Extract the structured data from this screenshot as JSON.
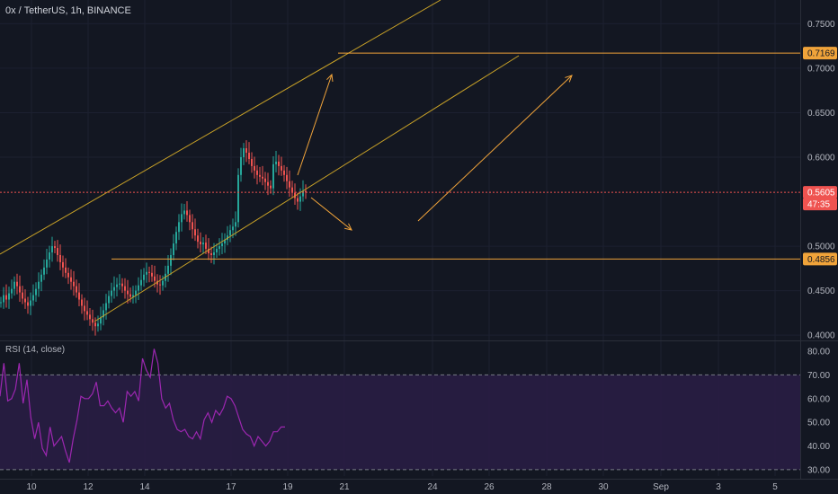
{
  "colors": {
    "background": "#131722",
    "grid": "#1c2030",
    "up": "#26a69a",
    "down": "#ef5350",
    "drawing": "#f0a33a",
    "channel": "#c9a227",
    "current_price_line": "#ef5350",
    "rsi_line": "#9c27b0",
    "rsi_band": "#2a1d45"
  },
  "chart_data": [
    {
      "type": "candlestick",
      "title": "0x / TetherUS, 1h, BINANCE",
      "x_tick_labels": [
        "10",
        "12",
        "14",
        "17",
        "19",
        "21",
        "24",
        "26",
        "28",
        "30",
        "Sep",
        "3",
        "5"
      ],
      "y_tick_labels": [
        "0.7500",
        "0.7000",
        "0.6500",
        "0.6000",
        "0.5000",
        "0.4500",
        "0.4000"
      ],
      "ylim": [
        0.3935,
        0.7766
      ],
      "price_tags": [
        {
          "value": "0.7169",
          "style": "orange"
        },
        {
          "value": "0.5605",
          "style": "red"
        },
        {
          "value": "47:35",
          "style": "red-countdown"
        },
        {
          "value": "0.4856",
          "style": "orange"
        }
      ],
      "last_price": 0.5605,
      "horizontal_levels": [
        0.7169,
        0.4856
      ],
      "approx_closes_hourly": [
        0.437,
        0.445,
        0.44,
        0.447,
        0.452,
        0.46,
        0.455,
        0.448,
        0.441,
        0.437,
        0.433,
        0.439,
        0.445,
        0.452,
        0.46,
        0.468,
        0.476,
        0.485,
        0.493,
        0.5,
        0.498,
        0.49,
        0.482,
        0.476,
        0.47,
        0.465,
        0.46,
        0.455,
        0.448,
        0.44,
        0.433,
        0.427,
        0.423,
        0.418,
        0.414,
        0.41,
        0.413,
        0.42,
        0.428,
        0.436,
        0.444,
        0.45,
        0.454,
        0.457,
        0.458,
        0.455,
        0.45,
        0.446,
        0.443,
        0.445,
        0.45,
        0.456,
        0.462,
        0.468,
        0.471,
        0.47,
        0.466,
        0.461,
        0.457,
        0.456,
        0.461,
        0.469,
        0.478,
        0.49,
        0.503,
        0.516,
        0.527,
        0.536,
        0.54,
        0.535,
        0.527,
        0.519,
        0.512,
        0.505,
        0.502,
        0.504,
        0.497,
        0.492,
        0.49,
        0.493,
        0.497,
        0.5,
        0.503,
        0.507,
        0.512,
        0.518,
        0.522,
        0.527,
        0.58,
        0.6,
        0.61,
        0.605,
        0.598,
        0.59,
        0.585,
        0.58,
        0.578,
        0.576,
        0.572,
        0.568,
        0.565,
        0.592,
        0.595,
        0.59,
        0.585,
        0.58,
        0.573,
        0.566,
        0.56,
        0.554,
        0.55,
        0.556,
        0.562,
        0.5605
      ],
      "approx_close_step_hours": 3
    },
    {
      "type": "line",
      "title": "RSI (14, close)",
      "y_tick_labels": [
        "80.00",
        "70.00",
        "60.00",
        "50.00",
        "40.00",
        "30.00"
      ],
      "ylim": [
        27.3,
        84.2
      ],
      "overbought": 70,
      "oversold": 30,
      "approx_values": [
        61,
        75,
        59,
        60,
        64,
        75,
        58,
        68,
        52,
        43,
        50,
        39,
        36,
        48,
        40,
        42,
        44,
        38,
        33,
        43,
        51,
        61,
        60,
        60,
        62,
        67,
        57,
        57,
        59,
        56,
        54,
        56,
        50,
        63,
        61,
        63,
        59,
        77,
        72,
        69,
        81,
        75,
        60,
        56,
        58,
        51,
        47,
        46,
        47,
        44,
        43,
        46,
        43,
        51,
        54,
        50,
        55,
        53,
        56,
        61,
        60,
        57,
        52,
        47,
        45,
        44,
        40,
        44,
        42,
        40,
        42,
        46,
        46,
        48,
        48
      ]
    }
  ],
  "drawings": [
    {
      "kind": "parallel_channel_upper"
    },
    {
      "kind": "parallel_channel_lower"
    },
    {
      "kind": "mid_channel_line"
    },
    {
      "kind": "arrow"
    },
    {
      "kind": "arrow"
    },
    {
      "kind": "arrow"
    }
  ]
}
